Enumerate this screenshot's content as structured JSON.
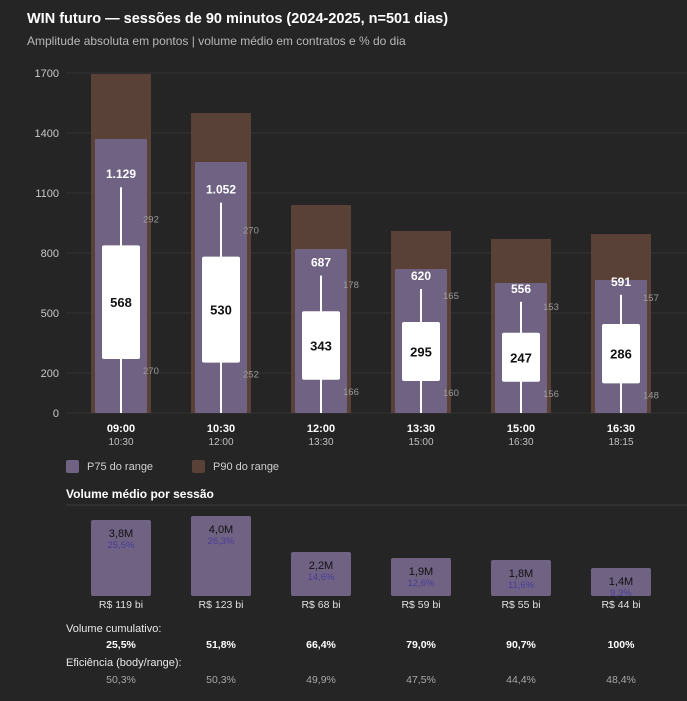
{
  "title": "WIN futuro — sessões de 90 minutos (2024-2025, n=501 dias)",
  "subtitle": "Amplitude absoluta em pontos | volume médio em contratos e % do dia",
  "colors": {
    "background": "#252525",
    "p75": "#6f6283",
    "p90": "#5a4138",
    "box": "#ffffff",
    "whisker": "#ffffff",
    "volume_bar": "#6f6283",
    "volume_pct": "#4b3c9a"
  },
  "chart_data": [
    {
      "type": "bar",
      "title": "Amplitude absoluta em pontos",
      "ylim": [
        0,
        1700
      ],
      "yticks": [
        0,
        200,
        500,
        800,
        1100,
        1400,
        1700
      ],
      "categories": [
        "09:00",
        "10:30",
        "12:00",
        "13:30",
        "15:00",
        "16:30"
      ],
      "category_end": [
        "10:30",
        "12:00",
        "13:30",
        "15:00",
        "16:30",
        "18:15"
      ],
      "series": [
        {
          "name": "P90 do range",
          "values": [
            1695,
            1500,
            1040,
            910,
            870,
            895
          ]
        },
        {
          "name": "P75 do range",
          "values": [
            1370,
            1255,
            820,
            720,
            650,
            665
          ]
        }
      ],
      "whisker_top": [
        1129,
        1052,
        687,
        620,
        556,
        591
      ],
      "box_top": [
        838,
        782,
        509,
        455,
        401,
        445
      ],
      "box_label": [
        568,
        530,
        343,
        295,
        247,
        286
      ],
      "box_bottom": [
        270,
        252,
        166,
        160,
        156,
        148
      ],
      "annotation_upper": [
        292,
        270,
        178,
        165,
        153,
        157
      ],
      "annotation_lower": [
        270,
        252,
        166,
        160,
        156,
        148
      ],
      "top_labels": [
        "1.129",
        "1.052",
        "687",
        "620",
        "556",
        "591"
      ]
    },
    {
      "type": "bar",
      "title": "Volume médio por sessão",
      "categories": [
        "09:00",
        "10:30",
        "12:00",
        "13:30",
        "15:00",
        "16:30"
      ],
      "values": [
        3.8,
        4.0,
        2.2,
        1.9,
        1.8,
        1.4
      ],
      "unit": "M contratos",
      "value_labels": [
        "3,8M",
        "4,0M",
        "2,2M",
        "1,9M",
        "1,8M",
        "1,4M"
      ],
      "pct_labels": [
        "25,5%",
        "26,3%",
        "14,6%",
        "12,6%",
        "11,6%",
        "9,3%"
      ],
      "money_labels": [
        "R$ 119 bi",
        "R$ 123 bi",
        "R$ 68 bi",
        "R$ 59 bi",
        "R$ 55 bi",
        "R$ 44 bi"
      ]
    }
  ],
  "legend": {
    "p75": "P75 do range",
    "p90": "P90 do range"
  },
  "volume": {
    "section_title": "Volume médio por sessão"
  },
  "cumulative": {
    "label": "Volume cumulativo:",
    "values": [
      "25,5%",
      "51,8%",
      "66,4%",
      "79,0%",
      "90,7%",
      "100%"
    ]
  },
  "efficiency": {
    "label": "Eficiência (body/range):",
    "values": [
      "50,3%",
      "50,3%",
      "49,9%",
      "47,5%",
      "44,4%",
      "48,4%"
    ]
  }
}
